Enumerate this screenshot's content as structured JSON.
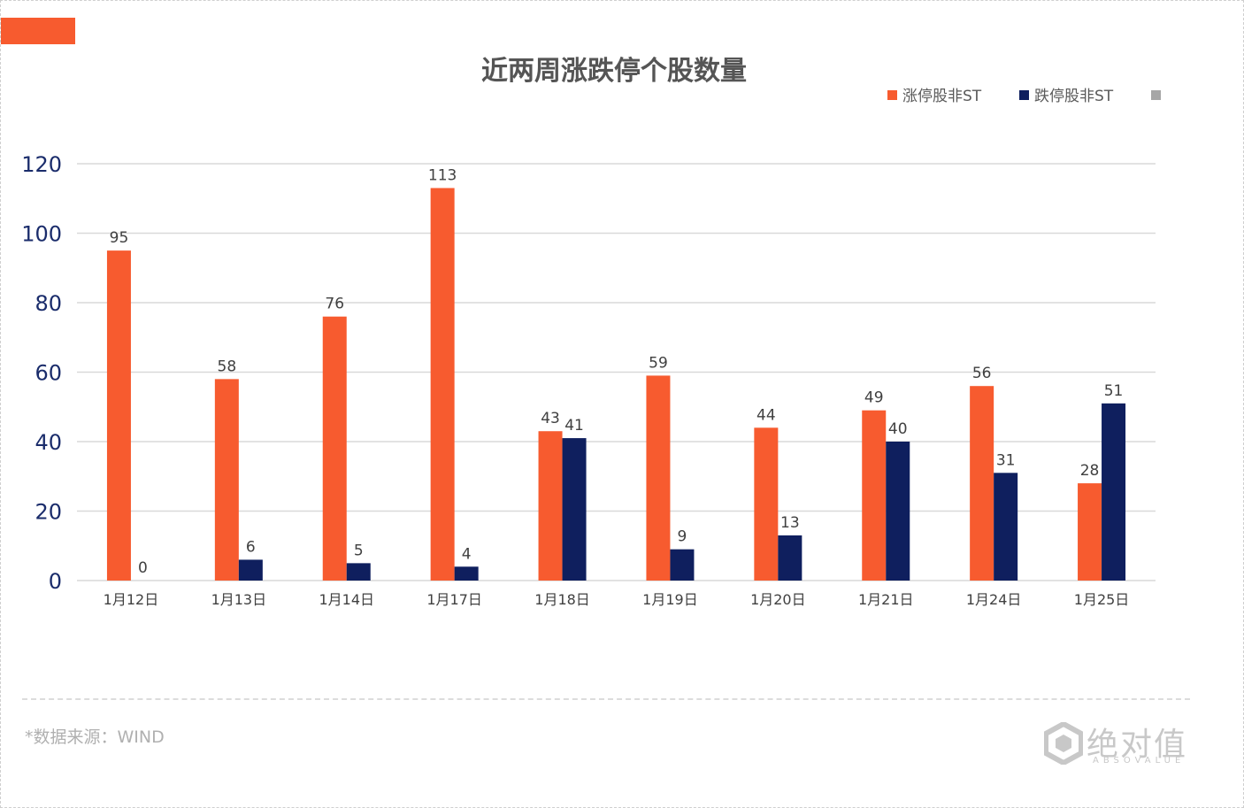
{
  "chart_data": {
    "type": "bar",
    "title": "近两周涨跌停个股数量",
    "categories": [
      "1月12日",
      "1月13日",
      "1月14日",
      "1月17日",
      "1月18日",
      "1月19日",
      "1月20日",
      "1月21日",
      "1月24日",
      "1月25日"
    ],
    "series": [
      {
        "name": "涨停股非ST",
        "color": "#f75b2f",
        "values": [
          95,
          58,
          76,
          113,
          43,
          59,
          44,
          49,
          56,
          28
        ]
      },
      {
        "name": "跌停股非ST",
        "color": "#0f1f5e",
        "values": [
          0,
          6,
          5,
          4,
          41,
          9,
          13,
          40,
          31,
          51
        ]
      }
    ],
    "legend_extra_color": "#a6a6a6",
    "ylim": [
      0,
      120
    ],
    "yticks": [
      0,
      20,
      40,
      60,
      80,
      100,
      120
    ],
    "xlabel": "",
    "ylabel": "",
    "grid": true,
    "legend_position": "top-right",
    "data_labels": true
  },
  "footer": {
    "source": "*数据来源：WIND"
  },
  "logo": {
    "text": "绝对值",
    "subtext": "ABSOVALUE"
  },
  "colors": {
    "accent": "#f75b2f",
    "grid": "#d9d9d9",
    "axis_tick_text": "#1a2c6b"
  }
}
